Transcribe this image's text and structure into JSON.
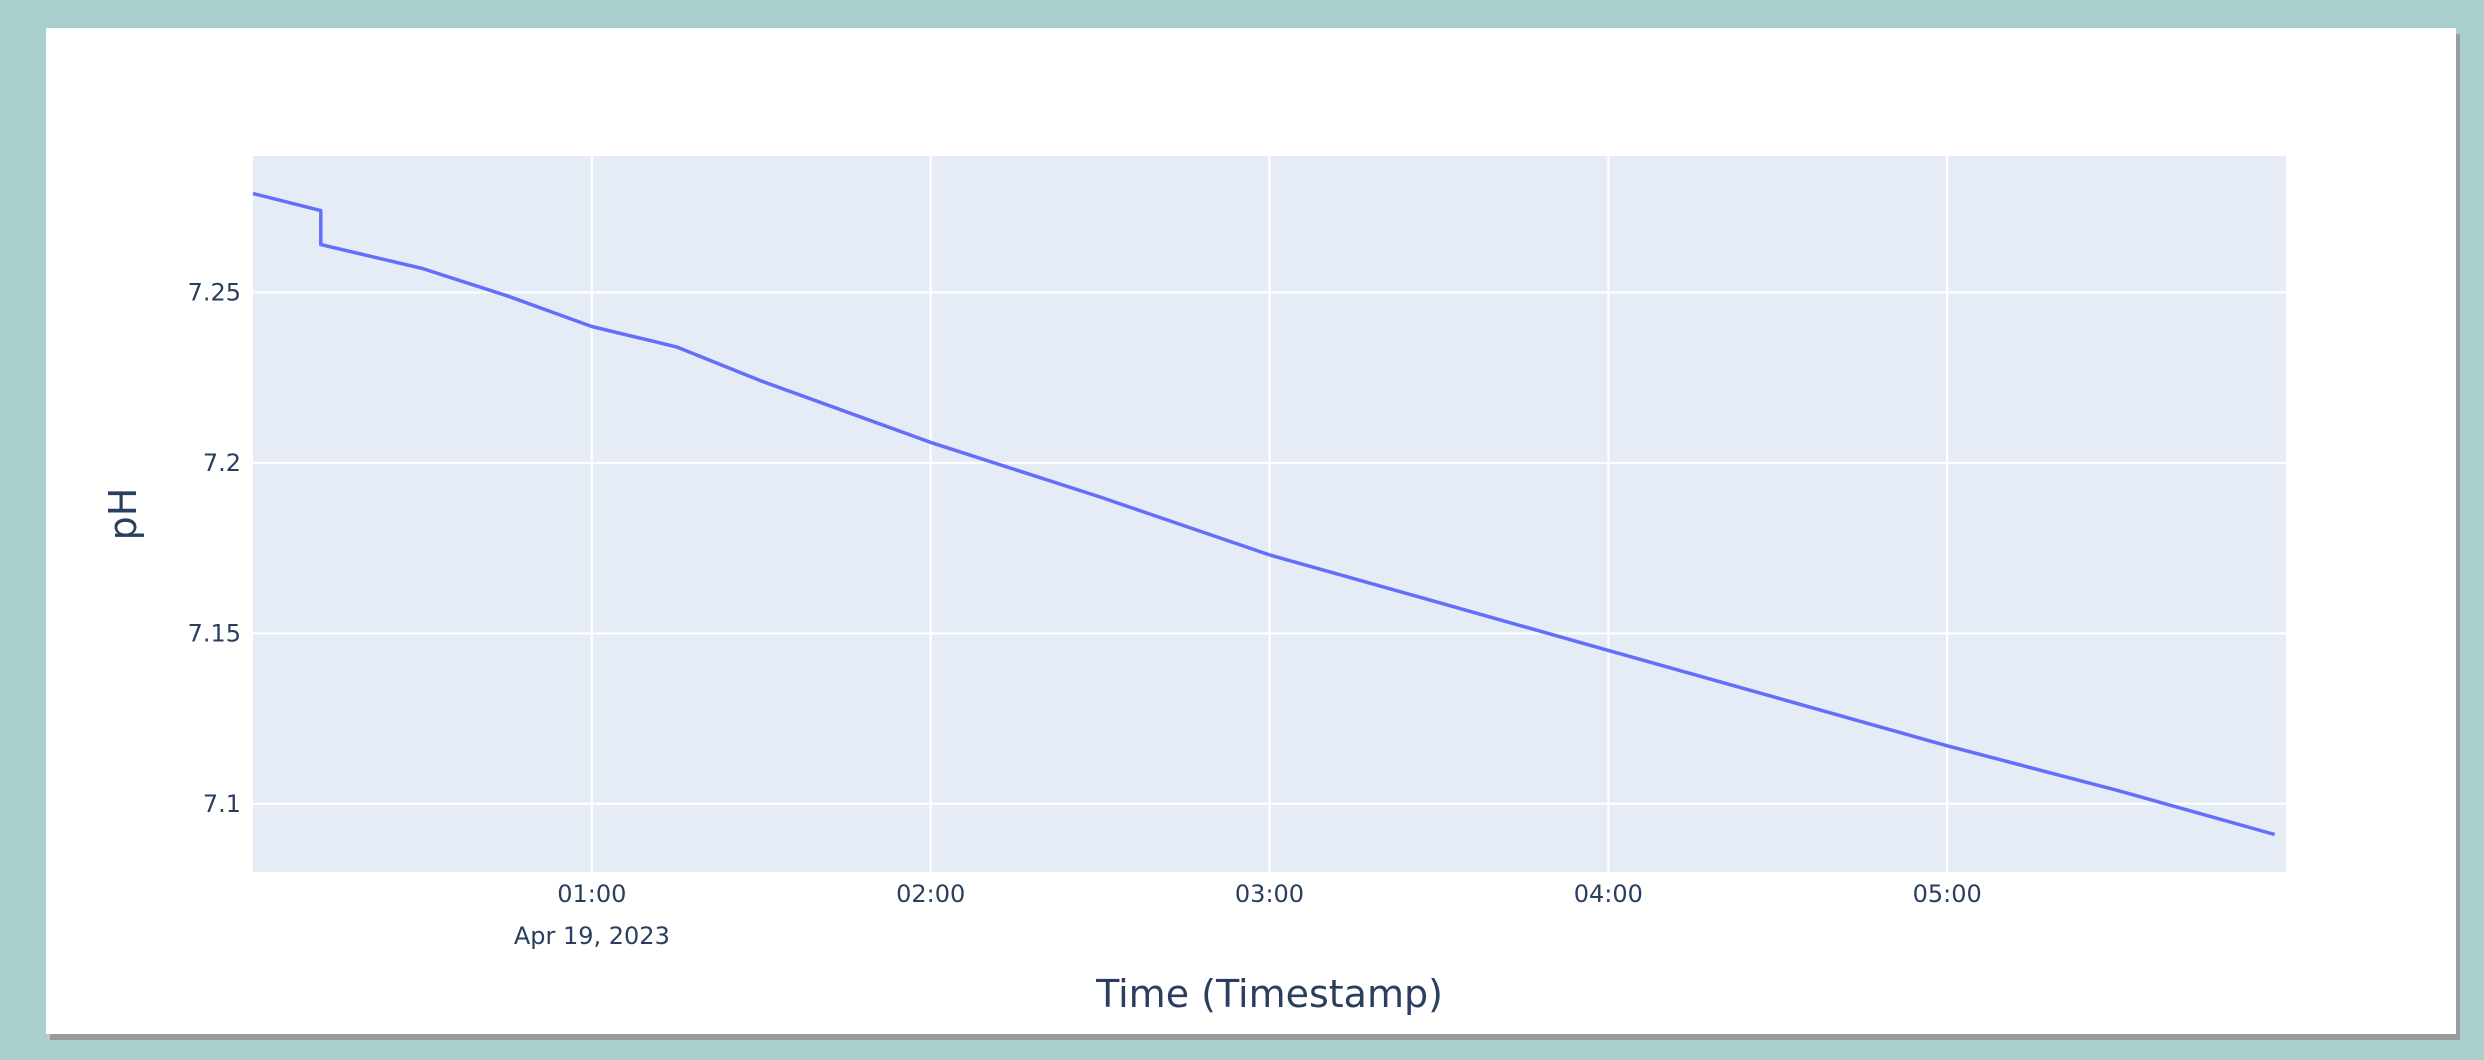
{
  "chart_data": {
    "type": "line",
    "xlabel": "Time (Timestamp)",
    "ylabel": "pH",
    "x_ticks": [
      "01:00",
      "02:00",
      "03:00",
      "04:00",
      "05:00"
    ],
    "x_date_label": "Apr 19, 2023",
    "y_ticks": [
      "7.1",
      "7.15",
      "7.2",
      "7.25"
    ],
    "x_range": [
      "2023-04-19 00:00",
      "2023-04-19 06:00"
    ],
    "y_range": [
      7.08,
      7.29
    ],
    "grid": true,
    "legend": "none",
    "series": [
      {
        "color": "#636efa",
        "points": [
          [
            "2023-04-19 00:00",
            7.279
          ],
          [
            "2023-04-19 00:12",
            7.274
          ],
          [
            "2023-04-19 00:12",
            7.264
          ],
          [
            "2023-04-19 00:30",
            7.257
          ],
          [
            "2023-04-19 00:45",
            7.249
          ],
          [
            "2023-04-19 01:00",
            7.24
          ],
          [
            "2023-04-19 01:10",
            7.236
          ],
          [
            "2023-04-19 01:15",
            7.234
          ],
          [
            "2023-04-19 01:30",
            7.224
          ],
          [
            "2023-04-19 02:00",
            7.206
          ],
          [
            "2023-04-19 02:30",
            7.19
          ],
          [
            "2023-04-19 03:00",
            7.173
          ],
          [
            "2023-04-19 03:30",
            7.159
          ],
          [
            "2023-04-19 04:00",
            7.145
          ],
          [
            "2023-04-19 04:30",
            7.131
          ],
          [
            "2023-04-19 05:00",
            7.117
          ],
          [
            "2023-04-19 05:30",
            7.104
          ],
          [
            "2023-04-19 05:58",
            7.091
          ]
        ]
      }
    ]
  }
}
